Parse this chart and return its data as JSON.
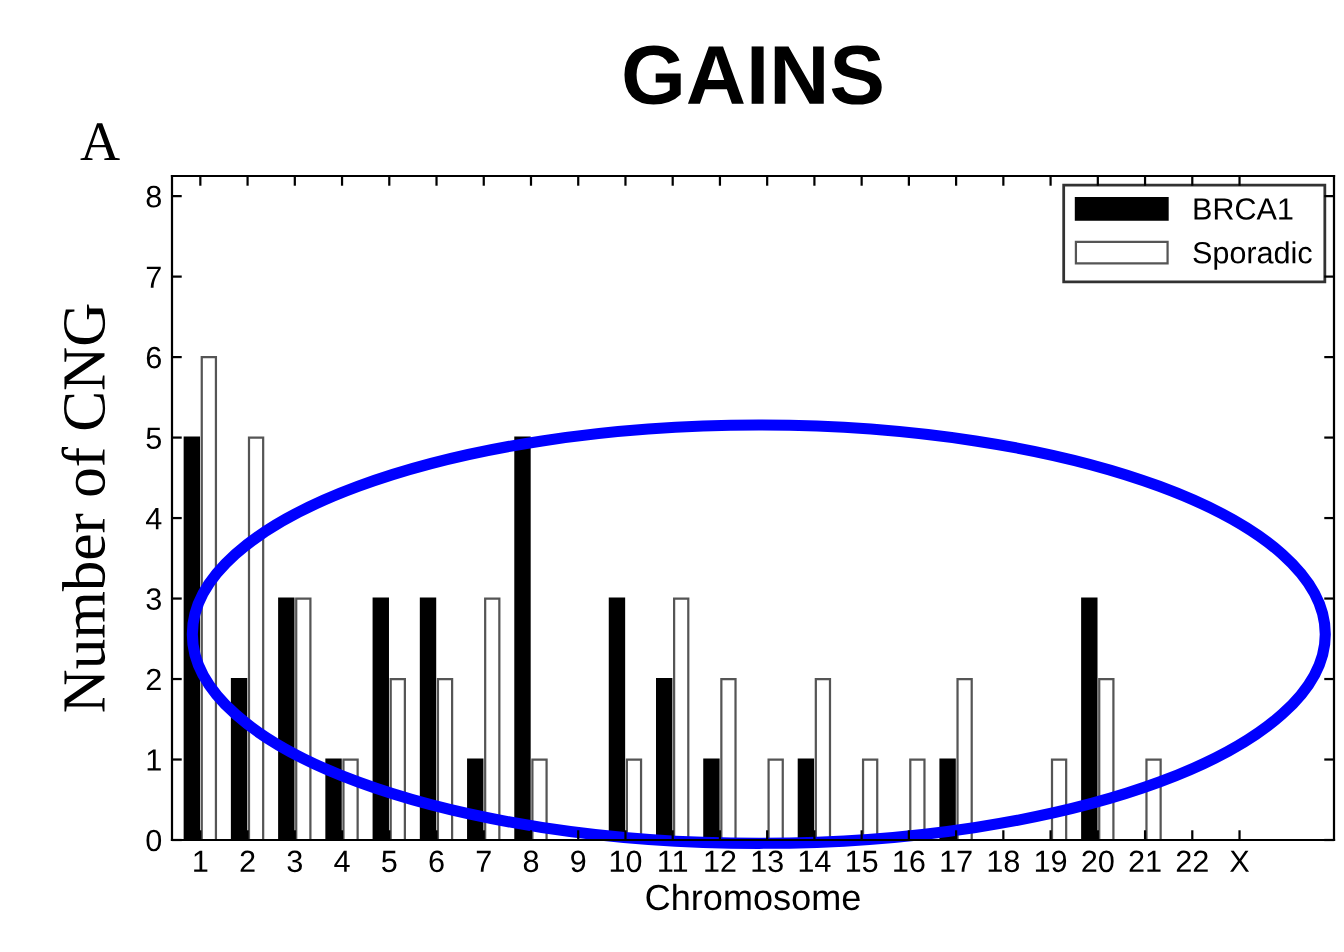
{
  "chart_data": {
    "type": "bar",
    "title": "GAINS",
    "xlabel": "Chromosome",
    "ylabel": "Number of CNG",
    "annotations": [
      "A"
    ],
    "categories": [
      "1",
      "2",
      "3",
      "4",
      "5",
      "6",
      "7",
      "8",
      "9",
      "10",
      "11",
      "12",
      "13",
      "14",
      "15",
      "16",
      "17",
      "18",
      "19",
      "20",
      "21",
      "22",
      "X"
    ],
    "series": [
      {
        "name": "BRCA1",
        "color": "#000000",
        "values": [
          5,
          2,
          3,
          1,
          3,
          3,
          1,
          5,
          0,
          3,
          2,
          1,
          0,
          1,
          0,
          0,
          1,
          0,
          0,
          3,
          0,
          0,
          0
        ]
      },
      {
        "name": "Sporadic",
        "color": "#ffffff",
        "values": [
          6,
          5,
          3,
          1,
          2,
          2,
          3,
          1,
          0,
          1,
          3,
          2,
          1,
          2,
          1,
          1,
          2,
          0,
          1,
          2,
          1,
          0,
          0
        ]
      }
    ],
    "ylim": [
      0,
      8.25
    ],
    "yticks": [
      0,
      1,
      2,
      3,
      4,
      5,
      6,
      7,
      8
    ],
    "grid": false,
    "legend": "top right"
  }
}
